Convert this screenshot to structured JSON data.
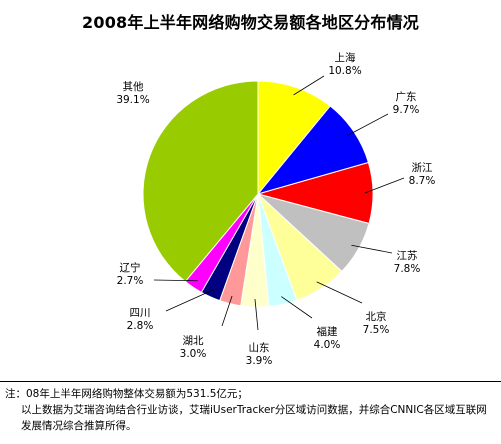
{
  "chart_data": {
    "type": "pie",
    "title": "2008年上半年网络购物交易额各地区分布情况",
    "slices": [
      {
        "label": "上海",
        "value": 10.8,
        "value_label": "10.8%",
        "color": "#ffff00"
      },
      {
        "label": "广东",
        "value": 9.7,
        "value_label": "9.7%",
        "color": "#0000ff"
      },
      {
        "label": "浙江",
        "value": 8.7,
        "value_label": "8.7%",
        "color": "#ff0000"
      },
      {
        "label": "江苏",
        "value": 7.8,
        "value_label": "7.8%",
        "color": "#c0c0c0"
      },
      {
        "label": "北京",
        "value": 7.5,
        "value_label": "7.5%",
        "color": "#ffff99"
      },
      {
        "label": "福建",
        "value": 4.0,
        "value_label": "4.0%",
        "color": "#ccffff"
      },
      {
        "label": "山东",
        "value": 3.9,
        "value_label": "3.9%",
        "color": "#ffffcc"
      },
      {
        "label": "湖北",
        "value": 3.0,
        "value_label": "3.0%",
        "color": "#ff9999"
      },
      {
        "label": "四川",
        "value": 2.8,
        "value_label": "2.8%",
        "color": "#000080"
      },
      {
        "label": "辽宁",
        "value": 2.7,
        "value_label": "2.7%",
        "color": "#ff00ff"
      },
      {
        "label": "其他",
        "value": 39.1,
        "value_label": "39.1%",
        "color": "#99cc00"
      }
    ],
    "start_angle": "12 o'clock",
    "direction": "clockwise",
    "legend": "none (direct labels with leader lines)"
  },
  "note": {
    "line1": "注：08年上半年网络购物整体交易额为531.5亿元；",
    "line2": "以上数据为艾瑞咨询结合行业访谈，艾瑞iUserTracker分区域访问数据，并综合CNNIC各区域互联网发展情况综合推算所得。"
  }
}
